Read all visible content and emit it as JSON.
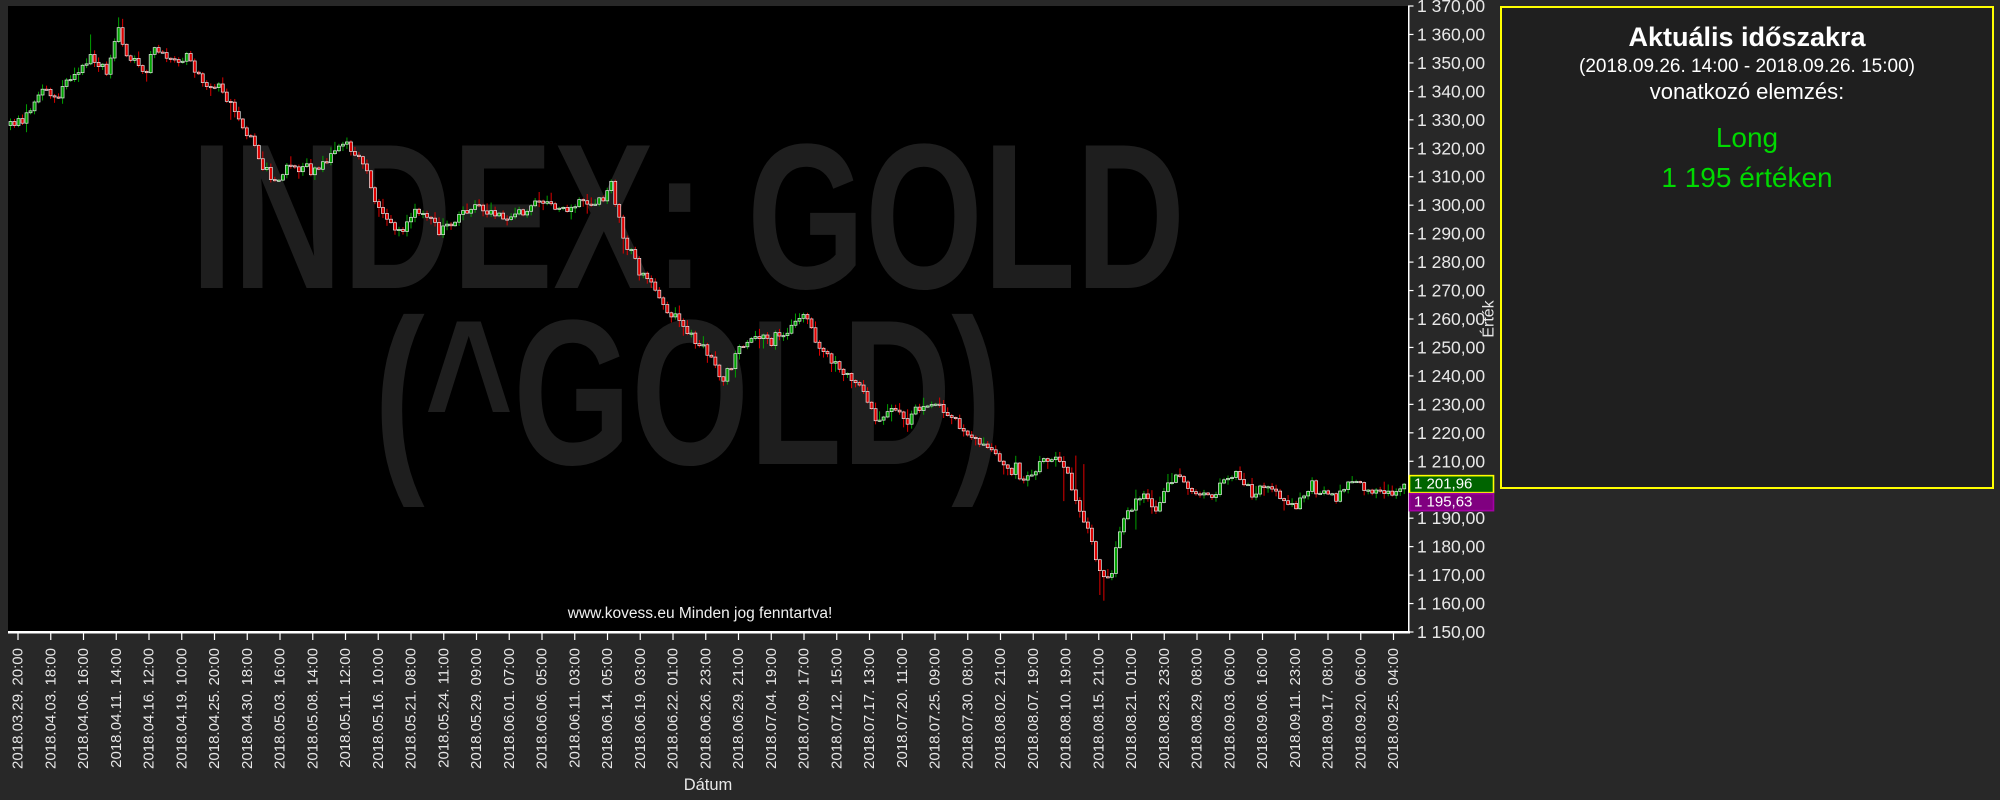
{
  "chart": {
    "watermark_line1": "INDEX: GOLD",
    "watermark_line2": "(^GOLD)",
    "copyright": "www.kovess.eu Minden jog fenntartva!",
    "x_axis_label": "Dátum",
    "y_axis_label": "Érték"
  },
  "panel": {
    "title": "Aktuális időszakra",
    "period": "(2018.09.26. 14:00 - 2018.09.26. 15:00)",
    "subtitle": "vonatkozó elemzés:",
    "signal": "Long",
    "signal_value": "1 195  értéken",
    "text_color": "#ffffff",
    "signal_color": "#00d900",
    "border_color": "#ffff00",
    "background": "#1f1f1f"
  },
  "price_markers": [
    {
      "label": "1 201,96",
      "value": 1201.96,
      "background": "#006400",
      "border": "#ffff00",
      "text_color": "#ffffff"
    },
    {
      "label": "1 195,63",
      "value": 1195.63,
      "background": "#800080",
      "border": "#a300a3",
      "text_color": "#ffffff"
    }
  ],
  "chart_data": {
    "type": "candlestick",
    "title": "INDEX: GOLD (^GOLD)",
    "xlabel": "Dátum",
    "ylabel": "Érték",
    "y_min": 1150,
    "y_max": 1370,
    "y_tick_step": 10,
    "y_tick_labels": [
      "1 370,00",
      "1 360,00",
      "1 350,00",
      "1 340,00",
      "1 330,00",
      "1 320,00",
      "1 310,00",
      "1 300,00",
      "1 290,00",
      "1 280,00",
      "1 270,00",
      "1 260,00",
      "1 250,00",
      "1 240,00",
      "1 230,00",
      "1 220,00",
      "1 210,00",
      "1 200,00",
      "1 190,00",
      "1 180,00",
      "1 170,00",
      "1 160,00",
      "1 150,00"
    ],
    "grid": false,
    "legend": false,
    "plot_background": "#000000",
    "up_color": "#00a000",
    "down_color": "#dd0000",
    "watermark_color": "#1e1e1e",
    "candle_count": 349,
    "last_close": 1201.96,
    "reference_price": 1195.63,
    "x_tick_labels": [
      "2018.03.29. 20:00",
      "2018.04.03. 18:00",
      "2018.04.06. 16:00",
      "2018.04.11. 14:00",
      "2018.04.16. 12:00",
      "2018.04.19. 10:00",
      "2018.04.25. 20:00",
      "2018.04.30. 18:00",
      "2018.05.03. 16:00",
      "2018.05.08. 14:00",
      "2018.05.11. 12:00",
      "2018.05.16. 10:00",
      "2018.05.21. 08:00",
      "2018.05.24. 11:00",
      "2018.05.29. 09:00",
      "2018.06.01. 07:00",
      "2018.06.06. 05:00",
      "2018.06.11. 03:00",
      "2018.06.14. 05:00",
      "2018.06.19. 03:00",
      "2018.06.22. 01:00",
      "2018.06.26. 23:00",
      "2018.06.29. 21:00",
      "2018.07.04. 19:00",
      "2018.07.09. 17:00",
      "2018.07.12. 15:00",
      "2018.07.17. 13:00",
      "2018.07.20. 11:00",
      "2018.07.25. 09:00",
      "2018.07.30. 08:00",
      "2018.08.02. 21:00",
      "2018.08.07. 19:00",
      "2018.08.10. 19:00",
      "2018.08.15. 21:00",
      "2018.08.21. 01:00",
      "2018.08.23. 23:00",
      "2018.08.29. 08:00",
      "2018.09.03. 06:00",
      "2018.09.06. 16:00",
      "2018.09.11. 23:00",
      "2018.09.17. 08:00",
      "2018.09.20. 06:00",
      "2018.09.25. 04:00"
    ],
    "price_keypoints": [
      [
        0,
        1328
      ],
      [
        4,
        1331
      ],
      [
        8,
        1342
      ],
      [
        11,
        1337
      ],
      [
        15,
        1345
      ],
      [
        20,
        1352
      ],
      [
        24,
        1347
      ],
      [
        27,
        1361
      ],
      [
        29,
        1352
      ],
      [
        33,
        1348
      ],
      [
        36,
        1355
      ],
      [
        40,
        1350
      ],
      [
        44,
        1352
      ],
      [
        48,
        1344
      ],
      [
        55,
        1336
      ],
      [
        59,
        1326
      ],
      [
        63,
        1315
      ],
      [
        66,
        1308
      ],
      [
        69,
        1314
      ],
      [
        76,
        1312
      ],
      [
        84,
        1322
      ],
      [
        88,
        1315
      ],
      [
        91,
        1302
      ],
      [
        94,
        1295
      ],
      [
        98,
        1292
      ],
      [
        101,
        1297
      ],
      [
        109,
        1292
      ],
      [
        116,
        1300
      ],
      [
        124,
        1295
      ],
      [
        131,
        1300
      ],
      [
        139,
        1299
      ],
      [
        143,
        1303
      ],
      [
        146,
        1299
      ],
      [
        150,
        1307
      ],
      [
        153,
        1288
      ],
      [
        156,
        1281
      ],
      [
        160,
        1274
      ],
      [
        164,
        1263
      ],
      [
        168,
        1258
      ],
      [
        171,
        1252
      ],
      [
        175,
        1246
      ],
      [
        178,
        1238
      ],
      [
        181,
        1248
      ],
      [
        185,
        1252
      ],
      [
        193,
        1255
      ],
      [
        198,
        1262
      ],
      [
        201,
        1252
      ],
      [
        205,
        1246
      ],
      [
        209,
        1240
      ],
      [
        213,
        1236
      ],
      [
        216,
        1224
      ],
      [
        220,
        1229
      ],
      [
        224,
        1224
      ],
      [
        228,
        1227
      ],
      [
        231,
        1231
      ],
      [
        235,
        1226
      ],
      [
        239,
        1220
      ],
      [
        243,
        1216
      ],
      [
        246,
        1212
      ],
      [
        250,
        1206
      ],
      [
        254,
        1204
      ],
      [
        258,
        1210
      ],
      [
        261,
        1212
      ],
      [
        264,
        1205
      ],
      [
        267,
        1194
      ],
      [
        270,
        1181
      ],
      [
        273,
        1168
      ],
      [
        275,
        1172
      ],
      [
        277,
        1186
      ],
      [
        280,
        1194
      ],
      [
        283,
        1200
      ],
      [
        286,
        1193
      ],
      [
        289,
        1202
      ],
      [
        292,
        1206
      ],
      [
        295,
        1200
      ],
      [
        299,
        1197
      ],
      [
        303,
        1202
      ],
      [
        306,
        1206
      ],
      [
        310,
        1199
      ],
      [
        314,
        1202
      ],
      [
        318,
        1197
      ],
      [
        321,
        1193
      ],
      [
        324,
        1201
      ],
      [
        328,
        1199
      ],
      [
        331,
        1197
      ],
      [
        335,
        1204
      ],
      [
        339,
        1199
      ],
      [
        343,
        1200
      ],
      [
        346,
        1198
      ],
      [
        348,
        1202
      ]
    ],
    "spikes": [
      {
        "i": 20,
        "high": 1360
      },
      {
        "i": 27,
        "high": 1366
      },
      {
        "i": 55,
        "low": 1330
      },
      {
        "i": 153,
        "low": 1283
      },
      {
        "i": 263,
        "low": 1196
      },
      {
        "i": 266,
        "high": 1212
      },
      {
        "i": 268,
        "high": 1209
      },
      {
        "i": 272,
        "low": 1163
      },
      {
        "i": 273,
        "low": 1161
      },
      {
        "i": 281,
        "low": 1186
      }
    ]
  }
}
